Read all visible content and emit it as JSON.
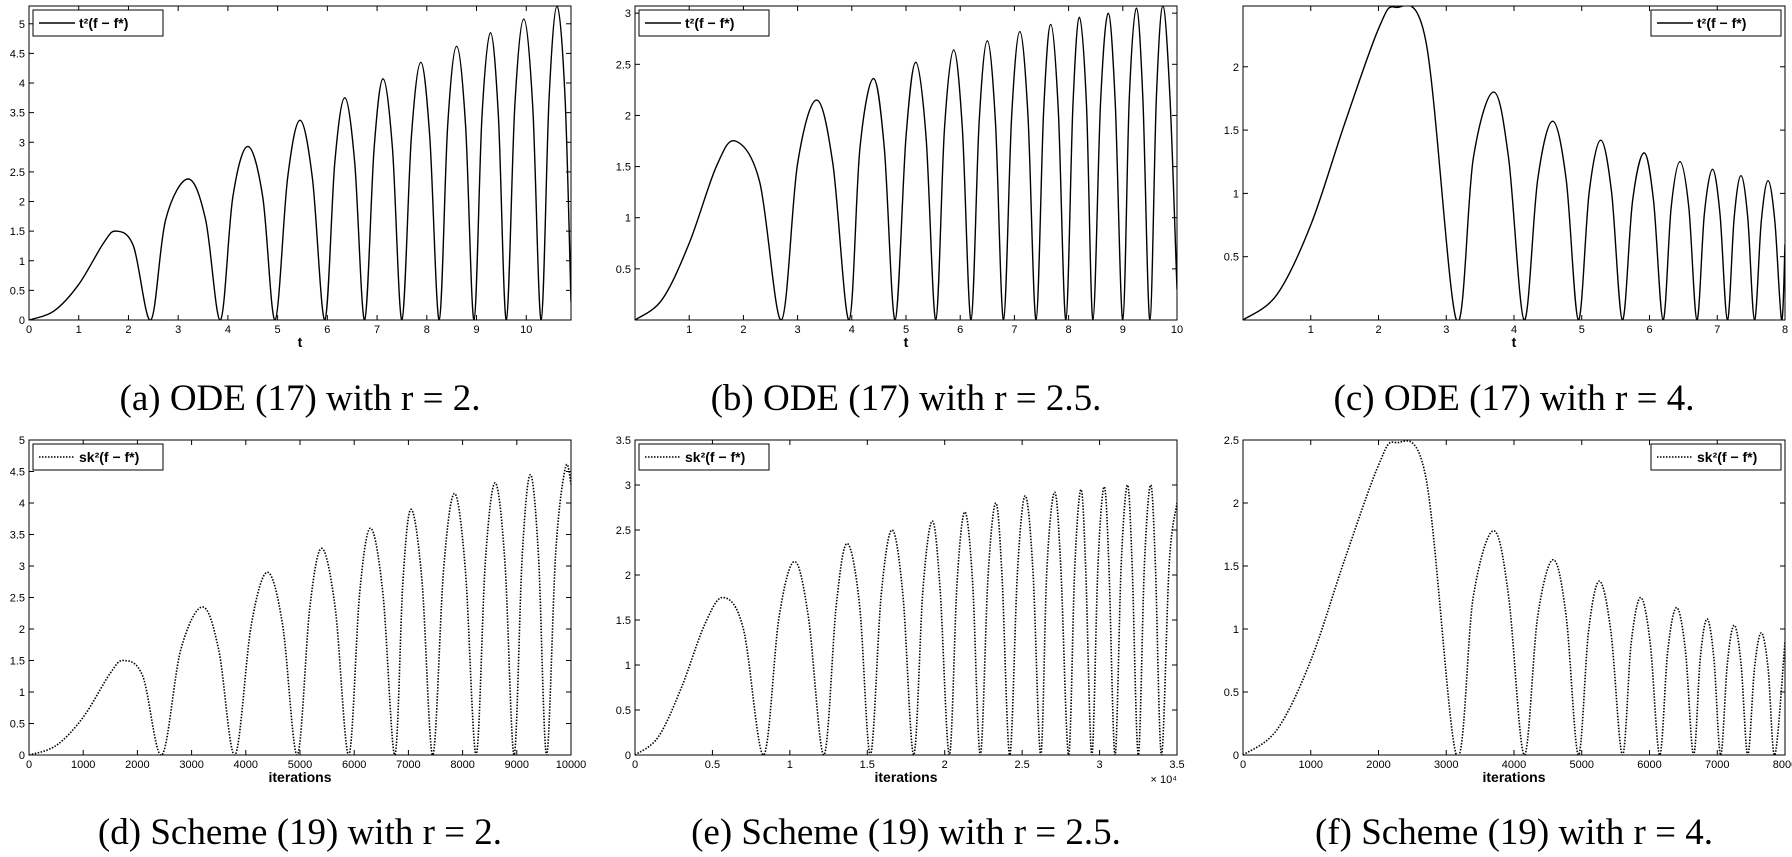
{
  "chart_data": [
    {
      "type": "line",
      "caption": "(a) ODE (17) with r = 2.",
      "xlabel": "t",
      "legend": "upper left",
      "xlim": [
        0,
        10.9
      ],
      "ylim": [
        0,
        5.3
      ],
      "xticks": [
        0,
        1,
        2,
        3,
        4,
        5,
        6,
        7,
        8,
        9,
        10
      ],
      "yticks": [
        0,
        0.5,
        1,
        1.5,
        2,
        2.5,
        3,
        3.5,
        4,
        4.5,
        5
      ],
      "x": [
        0,
        0.5,
        1,
        1.5,
        1.75,
        2.1,
        2.45,
        2.75,
        3.2,
        3.55,
        3.85,
        4.1,
        4.4,
        4.7,
        4.95,
        5.2,
        5.45,
        5.7,
        5.95,
        6.15,
        6.35,
        6.55,
        6.75,
        6.94,
        7.12,
        7.31,
        7.5,
        7.69,
        7.88,
        8.06,
        8.25,
        8.42,
        8.6,
        8.78,
        8.95,
        9.11,
        9.28,
        9.44,
        9.6,
        9.77,
        9.95,
        10.13,
        10.3,
        10.46,
        10.62,
        10.78,
        10.9
      ],
      "series": [
        {
          "name": "t²(f − f*)",
          "color": "#000000",
          "line_style": "solid",
          "values": [
            0,
            0.15,
            0.6,
            1.3,
            1.5,
            1.25,
            0,
            1.7,
            2.38,
            1.7,
            0,
            2.08,
            2.93,
            2.08,
            0,
            2.39,
            3.37,
            2.39,
            0,
            2.66,
            3.75,
            2.66,
            0,
            2.89,
            4.07,
            2.89,
            0,
            3.09,
            4.35,
            3.09,
            0,
            3.28,
            4.62,
            3.28,
            0,
            3.44,
            4.85,
            3.44,
            0,
            3.61,
            5.08,
            3.61,
            0,
            3.76,
            5.3,
            3.76,
            0.3
          ]
        }
      ]
    },
    {
      "type": "line",
      "caption": "(b) ODE (17) with r = 2.5.",
      "xlabel": "t",
      "legend": "upper left",
      "xlim": [
        0,
        10
      ],
      "ylim": [
        0,
        3.07
      ],
      "xticks": [
        1,
        2,
        3,
        4,
        5,
        6,
        7,
        8,
        9,
        10
      ],
      "yticks": [
        0.5,
        1,
        1.5,
        2,
        2.5,
        3
      ],
      "x": [
        0,
        0.5,
        1,
        1.5,
        1.85,
        2.3,
        2.7,
        3.0,
        3.35,
        3.65,
        3.95,
        4.15,
        4.4,
        4.6,
        4.8,
        5.0,
        5.18,
        5.37,
        5.55,
        5.71,
        5.88,
        6.04,
        6.2,
        6.35,
        6.5,
        6.65,
        6.8,
        6.95,
        7.1,
        7.25,
        7.4,
        7.54,
        7.67,
        7.81,
        7.95,
        8.08,
        8.2,
        8.33,
        8.45,
        8.59,
        8.73,
        8.86,
        9.0,
        9.12,
        9.25,
        9.37,
        9.5,
        9.62,
        9.74,
        9.87,
        10
      ],
      "series": [
        {
          "name": "t²(f − f*)",
          "color": "#000000",
          "line_style": "solid",
          "values": [
            0,
            0.2,
            0.75,
            1.5,
            1.75,
            1.35,
            0,
            1.53,
            2.15,
            1.53,
            0,
            1.68,
            2.36,
            1.68,
            0,
            1.79,
            2.52,
            1.79,
            0,
            1.87,
            2.64,
            1.87,
            0,
            1.94,
            2.73,
            1.94,
            0,
            2.0,
            2.82,
            2.0,
            0,
            2.05,
            2.89,
            2.05,
            0,
            2.1,
            2.96,
            2.1,
            0,
            2.13,
            3.0,
            2.13,
            0,
            2.17,
            3.05,
            2.17,
            0,
            2.18,
            3.07,
            2.18,
            0.3
          ]
        }
      ]
    },
    {
      "type": "line",
      "caption": "(c) ODE (17) with r = 4.",
      "xlabel": "t",
      "legend": "upper right",
      "xlim": [
        0,
        8
      ],
      "ylim": [
        0,
        2.48
      ],
      "xticks": [
        1,
        2,
        3,
        4,
        5,
        6,
        7,
        8
      ],
      "yticks": [
        0.5,
        1,
        1.5,
        2
      ],
      "x": [
        0,
        0.5,
        1,
        1.5,
        2,
        2.25,
        2.7,
        3.15,
        3.4,
        3.7,
        3.92,
        4.15,
        4.35,
        4.57,
        4.77,
        4.95,
        5.11,
        5.28,
        5.44,
        5.6,
        5.75,
        5.92,
        6.06,
        6.2,
        6.32,
        6.45,
        6.58,
        6.7,
        6.81,
        6.93,
        7.04,
        7.15,
        7.25,
        7.35,
        7.45,
        7.55,
        7.65,
        7.75,
        7.85,
        7.95,
        8
      ],
      "series": [
        {
          "name": "t²(f − f*)",
          "color": "#000000",
          "line_style": "solid",
          "values": [
            0,
            0.2,
            0.75,
            1.55,
            2.3,
            2.47,
            2.2,
            0,
            1.28,
            1.8,
            1.28,
            0,
            1.11,
            1.57,
            1.11,
            0,
            1.01,
            1.42,
            1.01,
            0,
            0.94,
            1.32,
            0.94,
            0,
            0.89,
            1.25,
            0.89,
            0,
            0.84,
            1.19,
            0.84,
            0,
            0.81,
            1.14,
            0.81,
            0,
            0.78,
            1.1,
            0.78,
            0,
            0.6
          ]
        }
      ]
    },
    {
      "type": "line",
      "caption": "(d) Scheme (19) with r = 2.",
      "xlabel": "iterations",
      "legend": "upper left",
      "xlim": [
        0,
        10000
      ],
      "ylim": [
        0,
        5
      ],
      "xticks": [
        0,
        1000,
        2000,
        3000,
        4000,
        5000,
        6000,
        7000,
        8000,
        9000,
        10000
      ],
      "yticks": [
        0,
        0.5,
        1,
        1.5,
        2,
        2.5,
        3,
        3.5,
        4,
        4.5,
        5
      ],
      "x": [
        0,
        500,
        1000,
        1500,
        1750,
        2100,
        2450,
        2800,
        3200,
        3500,
        3800,
        4100,
        4400,
        4680,
        4950,
        5180,
        5400,
        5650,
        5900,
        6100,
        6300,
        6530,
        6750,
        6900,
        7050,
        7250,
        7450,
        7650,
        7850,
        8050,
        8250,
        8420,
        8600,
        8780,
        8950,
        9100,
        9250,
        9400,
        9550,
        9720,
        9900,
        10000
      ],
      "series": [
        {
          "name": "sk²(f − f*)",
          "color": "#000000",
          "line_style": "dotted",
          "values": [
            0,
            0.15,
            0.6,
            1.3,
            1.5,
            1.25,
            0,
            1.67,
            2.35,
            1.67,
            0,
            2.06,
            2.9,
            2.06,
            0,
            2.33,
            3.28,
            2.33,
            0,
            2.56,
            3.6,
            2.56,
            0,
            2.77,
            3.9,
            2.77,
            0,
            2.95,
            4.15,
            2.95,
            0,
            3.07,
            4.32,
            3.07,
            0,
            3.16,
            4.45,
            3.16,
            0,
            3.24,
            4.57,
            4.3
          ]
        }
      ]
    },
    {
      "type": "line",
      "caption": "(e) Scheme (19) with r = 2.5.",
      "xlabel": "iterations",
      "x_multiplier": "× 10⁴",
      "legend": "upper left",
      "xlim": [
        0,
        3.5
      ],
      "ylim": [
        0,
        3.5
      ],
      "xticks": [
        0,
        0.5,
        1,
        1.5,
        2,
        2.5,
        3,
        3.5
      ],
      "yticks": [
        0,
        0.5,
        1,
        1.5,
        2,
        2.5,
        3,
        3.5
      ],
      "x": [
        0,
        0.15,
        0.3,
        0.45,
        0.57,
        0.7,
        0.83,
        0.93,
        1.03,
        1.12,
        1.22,
        1.3,
        1.37,
        1.45,
        1.52,
        1.59,
        1.66,
        1.73,
        1.8,
        1.86,
        1.92,
        1.97,
        2.03,
        2.08,
        2.13,
        2.18,
        2.23,
        2.28,
        2.33,
        2.37,
        2.42,
        2.47,
        2.52,
        2.57,
        2.62,
        2.66,
        2.71,
        2.75,
        2.8,
        2.84,
        2.88,
        2.91,
        2.95,
        2.99,
        3.03,
        3.06,
        3.1,
        3.14,
        3.18,
        3.21,
        3.25,
        3.29,
        3.33,
        3.36,
        3.4,
        3.45,
        3.5
      ],
      "series": [
        {
          "name": "sk²(f − f*)",
          "color": "#000000",
          "line_style": "dotted",
          "values": [
            0,
            0.2,
            0.75,
            1.45,
            1.75,
            1.4,
            0,
            1.53,
            2.15,
            1.53,
            0,
            1.67,
            2.35,
            1.67,
            0,
            1.78,
            2.5,
            1.78,
            0,
            1.85,
            2.6,
            1.85,
            0,
            1.92,
            2.7,
            1.92,
            0,
            1.99,
            2.8,
            1.99,
            0,
            2.04,
            2.88,
            2.04,
            0,
            2.07,
            2.92,
            2.07,
            0,
            2.09,
            2.95,
            2.09,
            0,
            2.12,
            2.98,
            2.12,
            0,
            2.13,
            3.0,
            2.13,
            0,
            2.13,
            3.0,
            2.13,
            0,
            2.13,
            2.8
          ]
        }
      ]
    },
    {
      "type": "line",
      "caption": "(f) Scheme (19) with r = 4.",
      "xlabel": "iterations",
      "legend": "upper right",
      "xlim": [
        0,
        8000
      ],
      "ylim": [
        0,
        2.5
      ],
      "xticks": [
        0,
        1000,
        2000,
        3000,
        4000,
        5000,
        6000,
        7000,
        8000
      ],
      "yticks": [
        0,
        0.5,
        1,
        1.5,
        2,
        2.5
      ],
      "x": [
        0,
        500,
        1000,
        1500,
        2000,
        2250,
        2700,
        3150,
        3400,
        3700,
        3920,
        4150,
        4350,
        4580,
        4770,
        4950,
        5100,
        5260,
        5430,
        5600,
        5730,
        5870,
        6010,
        6150,
        6270,
        6400,
        6530,
        6650,
        6750,
        6850,
        6950,
        7050,
        7150,
        7250,
        7350,
        7450,
        7550,
        7650,
        7750,
        7850,
        8000
      ],
      "series": [
        {
          "name": "sk²(f − f*)",
          "color": "#000000",
          "line_style": "dotted",
          "values": [
            0,
            0.2,
            0.75,
            1.55,
            2.3,
            2.48,
            2.2,
            0,
            1.26,
            1.78,
            1.26,
            0,
            1.1,
            1.55,
            1.1,
            0,
            0.98,
            1.38,
            0.98,
            0,
            0.89,
            1.25,
            0.89,
            0,
            0.83,
            1.17,
            0.83,
            0,
            0.77,
            1.08,
            0.77,
            0,
            0.73,
            1.03,
            0.73,
            0,
            0.69,
            0.97,
            0.69,
            0,
            0.9
          ]
        }
      ]
    }
  ]
}
